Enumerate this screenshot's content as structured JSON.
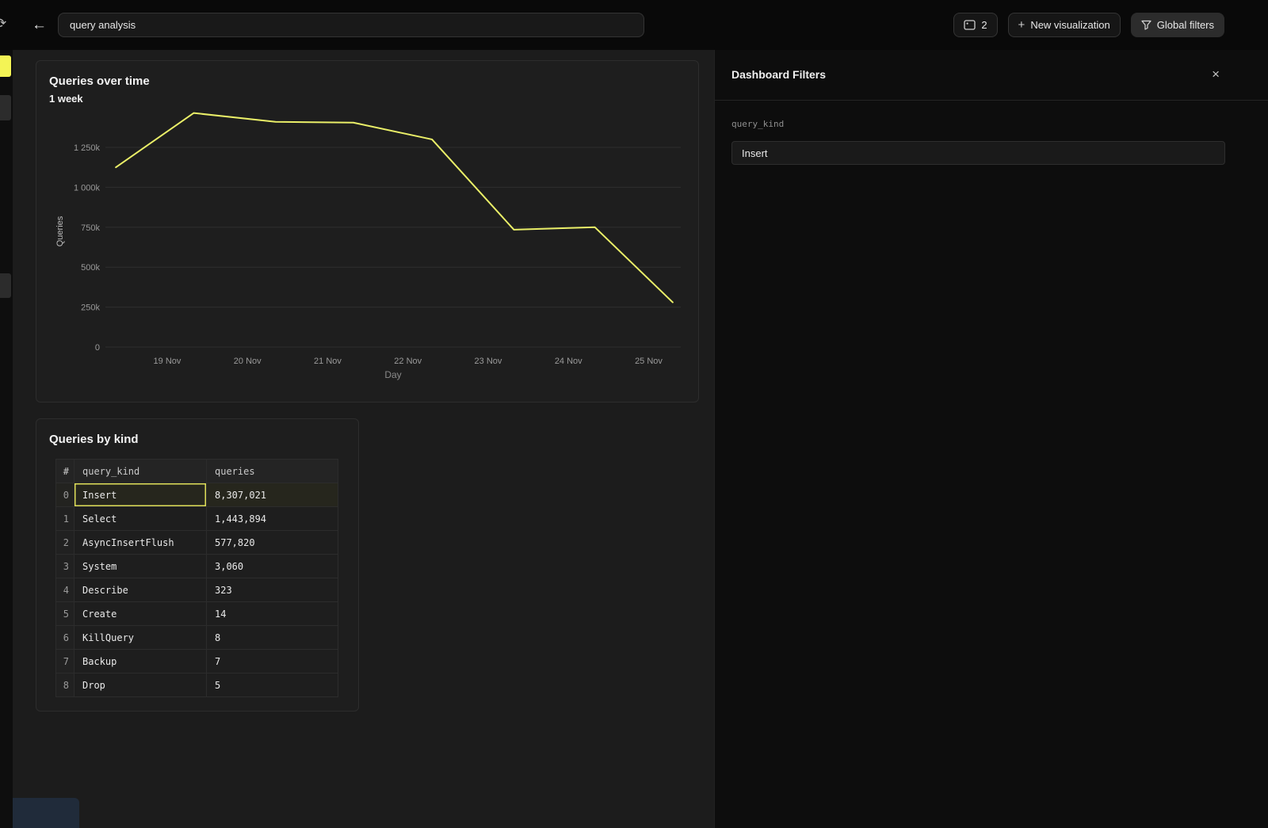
{
  "topbar": {
    "title_value": "query analysis",
    "panel_count_label": "2",
    "new_visualization_label": "New visualization",
    "global_filters_label": "Global filters"
  },
  "icons": {
    "refresh": "⟳",
    "back": "←",
    "plus": "+",
    "close": "×"
  },
  "chart_data": {
    "type": "line",
    "title": "Queries over time",
    "subtitle": "1 week",
    "xlabel": "Day",
    "ylabel": "Queries",
    "line_color": "#eaef68",
    "grid": true,
    "legend": "none",
    "x_domain_days_nov": [
      18.23,
      25.4
    ],
    "ylim_k": [
      0,
      1500
    ],
    "y_ticks_k": [
      {
        "v": 0,
        "label": "0"
      },
      {
        "v": 250,
        "label": "250k"
      },
      {
        "v": 500,
        "label": "500k"
      },
      {
        "v": 750,
        "label": "750k"
      },
      {
        "v": 1000,
        "label": "1 000k"
      },
      {
        "v": 1250,
        "label": "1 250k"
      }
    ],
    "x_ticks": [
      {
        "x": 19,
        "label": "19 Nov"
      },
      {
        "x": 20,
        "label": "20 Nov"
      },
      {
        "x": 21,
        "label": "21 Nov"
      },
      {
        "x": 22,
        "label": "22 Nov"
      },
      {
        "x": 23,
        "label": "23 Nov"
      },
      {
        "x": 24,
        "label": "24 Nov"
      },
      {
        "x": 25,
        "label": "25 Nov"
      }
    ],
    "series": [
      {
        "name": "Queries",
        "points_day_valuek": [
          [
            18.36,
            1125
          ],
          [
            19.33,
            1465
          ],
          [
            20.35,
            1410
          ],
          [
            21.32,
            1405
          ],
          [
            22.3,
            1300
          ],
          [
            23.32,
            735
          ],
          [
            24.33,
            750
          ],
          [
            25.3,
            280
          ]
        ]
      }
    ]
  },
  "table": {
    "title": "Queries by kind",
    "columns": [
      "#",
      "query_kind",
      "queries"
    ],
    "rows": [
      {
        "index": "0",
        "query_kind": "Insert",
        "queries": "8,307,021"
      },
      {
        "index": "1",
        "query_kind": "Select",
        "queries": "1,443,894"
      },
      {
        "index": "2",
        "query_kind": "AsyncInsertFlush",
        "queries": "577,820"
      },
      {
        "index": "3",
        "query_kind": "System",
        "queries": "3,060"
      },
      {
        "index": "4",
        "query_kind": "Describe",
        "queries": "323"
      },
      {
        "index": "5",
        "query_kind": "Create",
        "queries": "14"
      },
      {
        "index": "6",
        "query_kind": "KillQuery",
        "queries": "8"
      },
      {
        "index": "7",
        "query_kind": "Backup",
        "queries": "7"
      },
      {
        "index": "8",
        "query_kind": "Drop",
        "queries": "5"
      }
    ],
    "selected_cell": {
      "row": 0,
      "column": "query_kind"
    }
  },
  "filters_panel": {
    "title": "Dashboard Filters",
    "field_label": "query_kind",
    "field_value": "Insert"
  },
  "colors": {
    "accent_yellow": "#eaef68",
    "background": "#1c1c1c",
    "panel_background": "#0d0d0d"
  }
}
